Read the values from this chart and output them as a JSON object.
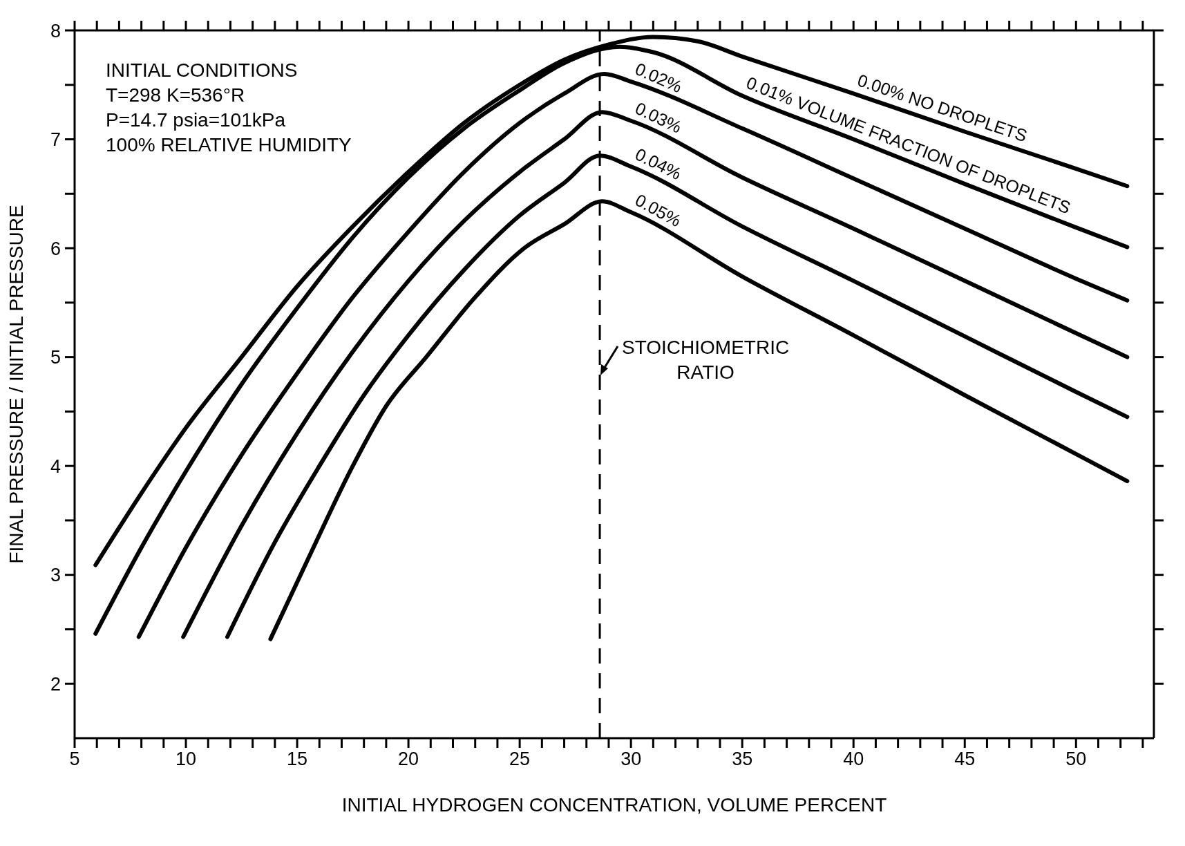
{
  "chart_data": {
    "type": "line",
    "xlabel": "INITIAL HYDROGEN CONCENTRATION, VOLUME  PERCENT",
    "ylabel": "FINAL PRESSURE / INITIAL PRESSURE",
    "xlim": [
      5,
      53.5
    ],
    "ylim": [
      1.5,
      8
    ],
    "xticks": [
      5,
      {
        "value": 6,
        "label": null
      },
      {
        "value": 7,
        "label": null
      },
      {
        "value": 8,
        "label": null
      },
      {
        "value": 9,
        "label": null
      },
      10,
      {
        "value": 11,
        "label": null
      },
      {
        "value": 12,
        "label": null
      },
      {
        "value": 13,
        "label": null
      },
      {
        "value": 14,
        "label": null
      },
      15,
      {
        "value": 16,
        "label": null
      },
      {
        "value": 17,
        "label": null
      },
      {
        "value": 18,
        "label": null
      },
      {
        "value": 19,
        "label": null
      },
      20,
      {
        "value": 21,
        "label": null
      },
      {
        "value": 22,
        "label": null
      },
      {
        "value": 23,
        "label": null
      },
      {
        "value": 24,
        "label": null
      },
      25,
      {
        "value": 26,
        "label": null
      },
      {
        "value": 27,
        "label": null
      },
      {
        "value": 28,
        "label": null
      },
      {
        "value": 29,
        "label": null
      },
      30,
      {
        "value": 31,
        "label": null
      },
      {
        "value": 32,
        "label": null
      },
      {
        "value": 33,
        "label": null
      },
      {
        "value": 34,
        "label": null
      },
      35,
      {
        "value": 36,
        "label": null
      },
      {
        "value": 37,
        "label": null
      },
      {
        "value": 38,
        "label": null
      },
      {
        "value": 39,
        "label": null
      },
      40,
      {
        "value": 41,
        "label": null
      },
      {
        "value": 42,
        "label": null
      },
      {
        "value": 43,
        "label": null
      },
      {
        "value": 44,
        "label": null
      },
      45,
      {
        "value": 46,
        "label": null
      },
      {
        "value": 47,
        "label": null
      },
      {
        "value": 48,
        "label": null
      },
      {
        "value": 49,
        "label": null
      },
      50,
      {
        "value": 51,
        "label": null
      },
      {
        "value": 52,
        "label": null
      },
      {
        "value": 53,
        "label": null
      }
    ],
    "yticks": [
      2,
      {
        "value": 2.5,
        "label": null
      },
      3,
      {
        "value": 3.5,
        "label": null
      },
      4,
      {
        "value": 4.5,
        "label": null
      },
      5,
      {
        "value": 5.5,
        "label": null
      },
      6,
      {
        "value": 6.5,
        "label": null
      },
      7,
      {
        "value": 7.5,
        "label": null
      },
      8
    ],
    "grid": false,
    "legend": false,
    "marker": "none",
    "line_style": "solid",
    "series": [
      {
        "name": "0.00% NO DROPLETS",
        "color": "#000000",
        "x": [
          5.94,
          8,
          10,
          12.5,
          15,
          17.5,
          20,
          22.5,
          25,
          27,
          29,
          31,
          33,
          35,
          40,
          45,
          50,
          52.3
        ],
        "values": [
          3.09,
          3.75,
          4.35,
          5.0,
          5.65,
          6.2,
          6.7,
          7.15,
          7.5,
          7.73,
          7.87,
          7.94,
          7.9,
          7.76,
          7.42,
          7.07,
          6.73,
          6.57
        ]
      },
      {
        "name": "0.01% VOLUME FRACTION OF DROPLETS",
        "color": "#000000",
        "x": [
          5.94,
          8,
          10,
          12.5,
          15,
          17.5,
          20,
          22.5,
          25,
          27,
          29.5,
          31,
          35,
          40,
          45,
          50,
          52.3
        ],
        "values": [
          2.46,
          3.25,
          3.95,
          4.75,
          5.45,
          6.1,
          6.65,
          7.1,
          7.45,
          7.7,
          7.85,
          7.8,
          7.4,
          7.0,
          6.59,
          6.19,
          6.01
        ]
      },
      {
        "name": "0.02%",
        "color": "#000000",
        "x": [
          7.88,
          10,
          12.5,
          15,
          17.5,
          20,
          22.5,
          25,
          27,
          28.8,
          30,
          35,
          40,
          45,
          50,
          52.3
        ],
        "values": [
          2.43,
          3.25,
          4.1,
          4.85,
          5.55,
          6.15,
          6.7,
          7.15,
          7.42,
          7.6,
          7.53,
          7.1,
          6.64,
          6.18,
          5.72,
          5.52
        ]
      },
      {
        "name": "0.03%",
        "color": "#000000",
        "x": [
          9.88,
          12.5,
          15,
          17.5,
          20,
          22.5,
          25,
          27,
          28.7,
          30,
          35,
          40,
          45,
          50,
          52.3
        ],
        "values": [
          2.43,
          3.45,
          4.3,
          5.05,
          5.7,
          6.25,
          6.7,
          7.0,
          7.25,
          7.17,
          6.65,
          6.18,
          5.7,
          5.22,
          5.0
        ]
      },
      {
        "name": "0.04%",
        "color": "#000000",
        "x": [
          11.86,
          14,
          16,
          18,
          20,
          22.5,
          25,
          27,
          28.6,
          30,
          35,
          40,
          45,
          50,
          52.3
        ],
        "values": [
          2.43,
          3.3,
          4.0,
          4.65,
          5.2,
          5.8,
          6.3,
          6.6,
          6.85,
          6.75,
          6.2,
          5.7,
          5.19,
          4.68,
          4.45
        ]
      },
      {
        "name": "0.05%",
        "color": "#000000",
        "x": [
          13.8,
          15.5,
          17.5,
          19,
          20.8,
          23,
          25.2,
          27,
          28.7,
          30,
          35,
          40,
          45,
          50,
          52.3
        ],
        "values": [
          2.41,
          3.15,
          4.0,
          4.55,
          5.0,
          5.55,
          6.0,
          6.22,
          6.43,
          6.33,
          5.74,
          5.2,
          4.65,
          4.11,
          3.86
        ]
      }
    ],
    "ref_lines": [
      {
        "axis": "x",
        "value": 28.6,
        "label": "STOICHIOMETRIC RATIO",
        "line_style": "dashed",
        "color": "#000000"
      }
    ],
    "annotations": [
      "INITIAL CONDITIONS",
      "T=298  K=536°R",
      "P=14.7  psia=101kPa",
      "100% RELATIVE HUMIDITY"
    ]
  }
}
